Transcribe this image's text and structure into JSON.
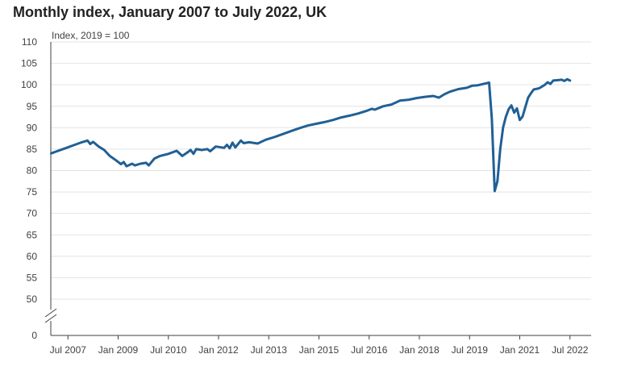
{
  "chart_data": {
    "type": "line",
    "title": "Monthly index, January 2007 to July 2022, UK",
    "unit_label": "Index, 2019 = 100",
    "xlabel": "",
    "ylabel": "",
    "y_ticks": [
      0,
      50,
      55,
      60,
      65,
      70,
      75,
      80,
      85,
      90,
      95,
      100,
      105,
      110
    ],
    "ylim": [
      50,
      110
    ],
    "y_axis_break": true,
    "grid": true,
    "x_tick_labels": [
      {
        "date": "2007-07",
        "label": "Jul 2007"
      },
      {
        "date": "2009-01",
        "label": "Jan 2009"
      },
      {
        "date": "2010-07",
        "label": "Jul 2010"
      },
      {
        "date": "2012-01",
        "label": "Jan 2012"
      },
      {
        "date": "2013-07",
        "label": "Jul 2013"
      },
      {
        "date": "2015-01",
        "label": "Jan 2015"
      },
      {
        "date": "2016-07",
        "label": "Jul 2016"
      },
      {
        "date": "2018-01",
        "label": "Jan 2018"
      },
      {
        "date": "2019-07",
        "label": "Jul 2019"
      },
      {
        "date": "2021-01",
        "label": "Jan 2021"
      },
      {
        "date": "2022-07",
        "label": "Jul 2022"
      }
    ],
    "line_color": "#206095",
    "series": [
      {
        "name": "",
        "points": [
          [
            "2007-01",
            84.0
          ],
          [
            "2007-03",
            84.5
          ],
          [
            "2007-06",
            85.2
          ],
          [
            "2007-09",
            85.9
          ],
          [
            "2007-12",
            86.6
          ],
          [
            "2008-02",
            87.0
          ],
          [
            "2008-03",
            86.2
          ],
          [
            "2008-04",
            86.7
          ],
          [
            "2008-06",
            85.6
          ],
          [
            "2008-08",
            84.8
          ],
          [
            "2008-10",
            83.4
          ],
          [
            "2008-12",
            82.5
          ],
          [
            "2009-02",
            81.5
          ],
          [
            "2009-03",
            82.0
          ],
          [
            "2009-04",
            81.0
          ],
          [
            "2009-06",
            81.6
          ],
          [
            "2009-07",
            81.2
          ],
          [
            "2009-09",
            81.6
          ],
          [
            "2009-11",
            81.8
          ],
          [
            "2009-12",
            81.2
          ],
          [
            "2010-02",
            82.8
          ],
          [
            "2010-04",
            83.4
          ],
          [
            "2010-07",
            83.9
          ],
          [
            "2010-10",
            84.6
          ],
          [
            "2010-12",
            83.4
          ],
          [
            "2011-02",
            84.3
          ],
          [
            "2011-03",
            84.8
          ],
          [
            "2011-04",
            83.9
          ],
          [
            "2011-05",
            85.0
          ],
          [
            "2011-07",
            84.8
          ],
          [
            "2011-09",
            85.0
          ],
          [
            "2011-10",
            84.5
          ],
          [
            "2011-12",
            85.6
          ],
          [
            "2012-03",
            85.3
          ],
          [
            "2012-04",
            86.0
          ],
          [
            "2012-05",
            85.2
          ],
          [
            "2012-06",
            86.5
          ],
          [
            "2012-07",
            85.4
          ],
          [
            "2012-09",
            87.0
          ],
          [
            "2012-10",
            86.4
          ],
          [
            "2012-12",
            86.6
          ],
          [
            "2013-03",
            86.3
          ],
          [
            "2013-06",
            87.2
          ],
          [
            "2013-09",
            87.8
          ],
          [
            "2013-12",
            88.5
          ],
          [
            "2014-03",
            89.2
          ],
          [
            "2014-06",
            89.9
          ],
          [
            "2014-09",
            90.5
          ],
          [
            "2014-12",
            90.9
          ],
          [
            "2015-03",
            91.3
          ],
          [
            "2015-06",
            91.8
          ],
          [
            "2015-09",
            92.4
          ],
          [
            "2015-12",
            92.8
          ],
          [
            "2016-03",
            93.3
          ],
          [
            "2016-06",
            93.9
          ],
          [
            "2016-08",
            94.4
          ],
          [
            "2016-09",
            94.2
          ],
          [
            "2016-12",
            95.0
          ],
          [
            "2017-03",
            95.4
          ],
          [
            "2017-06",
            96.3
          ],
          [
            "2017-09",
            96.5
          ],
          [
            "2017-12",
            96.9
          ],
          [
            "2018-03",
            97.2
          ],
          [
            "2018-06",
            97.4
          ],
          [
            "2018-08",
            97.0
          ],
          [
            "2018-10",
            97.8
          ],
          [
            "2018-12",
            98.4
          ],
          [
            "2019-03",
            99.0
          ],
          [
            "2019-06",
            99.3
          ],
          [
            "2019-08",
            99.8
          ],
          [
            "2019-10",
            99.9
          ],
          [
            "2019-12",
            100.2
          ],
          [
            "2020-02",
            100.5
          ],
          [
            "2020-03",
            92.0
          ],
          [
            "2020-04",
            75.2
          ],
          [
            "2020-05",
            77.5
          ],
          [
            "2020-06",
            85.0
          ],
          [
            "2020-07",
            90.0
          ],
          [
            "2020-08",
            92.5
          ],
          [
            "2020-09",
            94.3
          ],
          [
            "2020-10",
            95.2
          ],
          [
            "2020-11",
            93.5
          ],
          [
            "2020-12",
            94.5
          ],
          [
            "2021-01",
            91.8
          ],
          [
            "2021-02",
            92.6
          ],
          [
            "2021-03",
            94.8
          ],
          [
            "2021-04",
            97.0
          ],
          [
            "2021-05",
            98.0
          ],
          [
            "2021-06",
            98.9
          ],
          [
            "2021-08",
            99.2
          ],
          [
            "2021-10",
            100.0
          ],
          [
            "2021-11",
            100.6
          ],
          [
            "2021-12",
            100.2
          ],
          [
            "2022-01",
            101.0
          ],
          [
            "2022-03",
            101.1
          ],
          [
            "2022-04",
            101.2
          ],
          [
            "2022-05",
            100.9
          ],
          [
            "2022-06",
            101.3
          ],
          [
            "2022-07",
            101.0
          ]
        ]
      }
    ]
  }
}
